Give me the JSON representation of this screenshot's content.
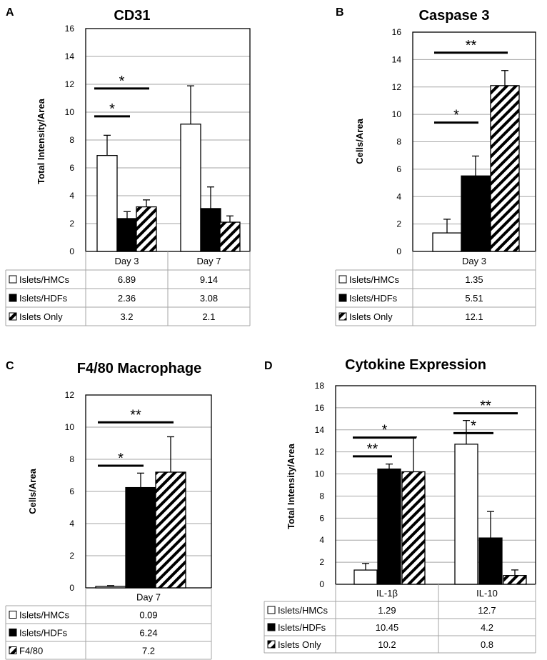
{
  "colors": {
    "white_bar": "#ffffff",
    "black_bar": "#000000",
    "stripe": "#000000",
    "grid": "#a6a6a6",
    "table_border": "#a6a6a6"
  },
  "chart_data": [
    {
      "panel": "A",
      "type": "bar",
      "title": "CD31",
      "ylabel": "Total Intensity/Area",
      "ylim": [
        0,
        16
      ],
      "yticks": [
        0,
        2,
        4,
        6,
        8,
        10,
        12,
        14,
        16
      ],
      "categories": [
        "Day 3",
        "Day 7"
      ],
      "series": [
        {
          "name": "Islets/HMCs",
          "pattern": "white",
          "values": [
            6.89,
            9.14
          ],
          "errors": [
            1.45,
            2.75
          ],
          "labels": [
            "6.89",
            "9.14"
          ]
        },
        {
          "name": "Islets/HDFs",
          "pattern": "black",
          "values": [
            2.36,
            3.08
          ],
          "errors": [
            0.5,
            1.55
          ],
          "labels": [
            "2.36",
            "3.08"
          ]
        },
        {
          "name": "Islets Only",
          "pattern": "stripe",
          "values": [
            3.2,
            2.1
          ],
          "errors": [
            0.5,
            0.45
          ],
          "labels": [
            "3.2",
            "2.1"
          ]
        }
      ],
      "significance": [
        {
          "label": "*",
          "y": 11.7,
          "from": [
            0,
            0
          ],
          "to": [
            0,
            2
          ]
        },
        {
          "label": "*",
          "y": 9.7,
          "from": [
            0,
            0
          ],
          "to": [
            0,
            1
          ]
        }
      ]
    },
    {
      "panel": "B",
      "type": "bar",
      "title": "Caspase 3",
      "ylabel": "Cells/Area",
      "ylim": [
        0,
        16
      ],
      "yticks": [
        0,
        2,
        4,
        6,
        8,
        10,
        12,
        14,
        16
      ],
      "categories": [
        "Day 3"
      ],
      "series": [
        {
          "name": "Islets/HMCs",
          "pattern": "white",
          "values": [
            1.35
          ],
          "errors": [
            1.0
          ],
          "labels": [
            "1.35"
          ]
        },
        {
          "name": "Islets/HDFs",
          "pattern": "black",
          "values": [
            5.51
          ],
          "errors": [
            1.45
          ],
          "labels": [
            "5.51"
          ]
        },
        {
          "name": "Islets Only",
          "pattern": "stripe",
          "values": [
            12.1
          ],
          "errors": [
            1.1
          ],
          "labels": [
            "12.1"
          ]
        }
      ],
      "significance": [
        {
          "label": "**",
          "y": 14.5,
          "from": [
            0,
            0
          ],
          "to": [
            0,
            2
          ]
        },
        {
          "label": "*",
          "y": 9.4,
          "from": [
            0,
            0
          ],
          "to": [
            0,
            1
          ]
        }
      ]
    },
    {
      "panel": "C",
      "type": "bar",
      "title": "F4/80 Macrophage",
      "ylabel": "Cells/Area",
      "ylim": [
        0,
        12
      ],
      "yticks": [
        0,
        2,
        4,
        6,
        8,
        10,
        12
      ],
      "categories": [
        "Day 7"
      ],
      "series": [
        {
          "name": "Islets/HMCs",
          "pattern": "white",
          "values": [
            0.09
          ],
          "errors": [
            0.05
          ],
          "labels": [
            "0.09"
          ]
        },
        {
          "name": "Islets/HDFs",
          "pattern": "black",
          "values": [
            6.24
          ],
          "errors": [
            0.9
          ],
          "labels": [
            "6.24"
          ]
        },
        {
          "name": "F4/80",
          "pattern": "stripe",
          "values": [
            7.2
          ],
          "errors": [
            2.2
          ],
          "labels": [
            "7.2"
          ]
        }
      ],
      "significance": [
        {
          "label": "**",
          "y": 10.3,
          "from": [
            0,
            0
          ],
          "to": [
            0,
            2
          ]
        },
        {
          "label": "*",
          "y": 7.6,
          "from": [
            0,
            0
          ],
          "to": [
            0,
            1
          ]
        }
      ]
    },
    {
      "panel": "D",
      "type": "bar",
      "title": "Cytokine Expression",
      "ylabel": "Total Intensity/Area",
      "ylim": [
        0,
        18
      ],
      "yticks": [
        0,
        2,
        4,
        6,
        8,
        10,
        12,
        14,
        16,
        18
      ],
      "categories": [
        "IL-1β",
        "IL-10"
      ],
      "series": [
        {
          "name": "Islets/HMCs",
          "pattern": "white",
          "values": [
            1.29,
            12.7
          ],
          "errors": [
            0.6,
            2.15
          ],
          "labels": [
            "1.29",
            "12.7"
          ]
        },
        {
          "name": "Islets/HDFs",
          "pattern": "black",
          "values": [
            10.45,
            4.2
          ],
          "errors": [
            0.45,
            2.4
          ],
          "labels": [
            "10.45",
            "4.2"
          ]
        },
        {
          "name": "Islets Only",
          "pattern": "stripe",
          "values": [
            10.2,
            0.8
          ],
          "errors": [
            3.15,
            0.5
          ],
          "labels": [
            "10.2",
            "0.8"
          ]
        }
      ],
      "significance": [
        {
          "label": "*",
          "y": 13.3,
          "from": [
            0,
            0
          ],
          "to": [
            0,
            2
          ]
        },
        {
          "label": "**",
          "y": 11.6,
          "from": [
            0,
            0
          ],
          "to": [
            0,
            1
          ]
        },
        {
          "label": "**",
          "y": 15.5,
          "from": [
            1,
            0
          ],
          "to": [
            1,
            2
          ]
        },
        {
          "label": "*",
          "y": 13.7,
          "from": [
            1,
            0
          ],
          "to": [
            1,
            1
          ]
        }
      ]
    }
  ]
}
